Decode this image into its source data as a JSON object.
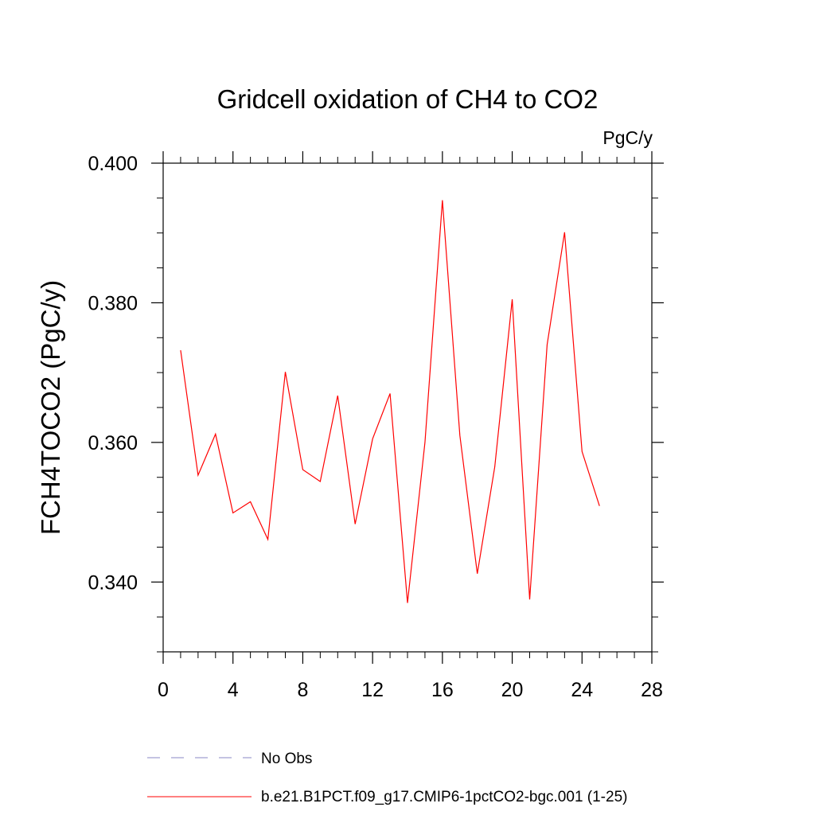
{
  "chart_data": {
    "type": "line",
    "title": "Gridcell oxidation of CH4 to CO2",
    "units_label": "PgC/y",
    "xlabel": "",
    "ylabel": "FCH4TOCO2  (PgC/y)",
    "xlim": [
      0,
      28
    ],
    "ylim": [
      0.33,
      0.4
    ],
    "x_ticks": [
      0,
      4,
      8,
      12,
      16,
      20,
      24,
      28
    ],
    "x_tick_labels": [
      "0",
      "4",
      "8",
      "12",
      "16",
      "20",
      "24",
      "28"
    ],
    "x_minor_step": 1,
    "y_ticks": [
      0.34,
      0.36,
      0.38,
      0.4
    ],
    "y_tick_labels": [
      "0.340",
      "0.360",
      "0.380",
      "0.400"
    ],
    "y_minor_step": 0.005,
    "grid": false,
    "legend_position": "bottom-left",
    "series": [
      {
        "name": "No Obs",
        "style": "dashed",
        "color": "#8a87c4",
        "x": [],
        "values": []
      },
      {
        "name": "b.e21.B1PCT.f09_g17.CMIP6-1pctCO2-bgc.001 (1-25)",
        "style": "solid",
        "color": "#ff0000",
        "x": [
          1,
          2,
          3,
          4,
          5,
          6,
          7,
          8,
          9,
          10,
          11,
          12,
          13,
          14,
          15,
          16,
          17,
          18,
          19,
          20,
          21,
          22,
          23,
          24,
          25
        ],
        "values": [
          0.3732,
          0.3553,
          0.3612,
          0.3499,
          0.3515,
          0.3461,
          0.3701,
          0.3561,
          0.3544,
          0.3667,
          0.3483,
          0.3605,
          0.367,
          0.337,
          0.36,
          0.3947,
          0.361,
          0.3412,
          0.3565,
          0.3805,
          0.3375,
          0.374,
          0.3901,
          0.3587,
          0.3509
        ]
      }
    ]
  }
}
